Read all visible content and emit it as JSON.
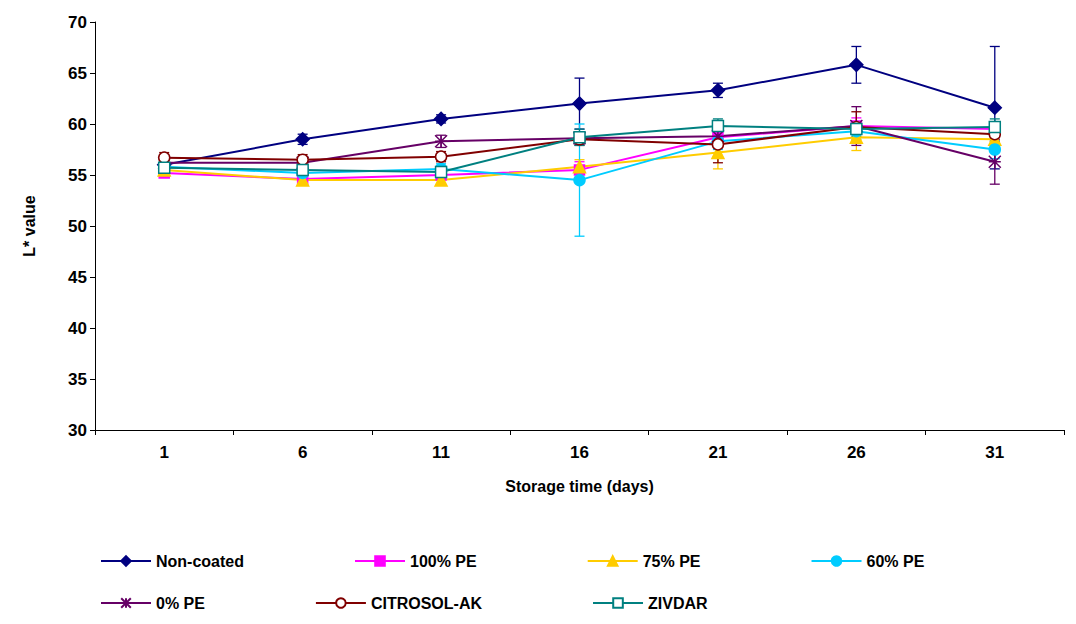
{
  "chart_data": {
    "type": "line",
    "x_label": "Storage time (days)",
    "y_label": "L* value",
    "categories": [
      1,
      6,
      11,
      16,
      21,
      26,
      31
    ],
    "ylim": [
      30,
      70
    ],
    "yticks": [
      30,
      35,
      40,
      45,
      50,
      55,
      60,
      65,
      70
    ],
    "grid": false,
    "legend": "bottom",
    "series": [
      {
        "name": "Non-coated",
        "color": "#000080",
        "marker": "diamond",
        "values": [
          56.0,
          58.5,
          60.5,
          62.0,
          63.3,
          65.8,
          61.6
        ],
        "errors": [
          0.5,
          0.5,
          0.4,
          2.5,
          0.7,
          1.8,
          6.0
        ]
      },
      {
        "name": "100% PE",
        "color": "#ff00ff",
        "marker": "square",
        "values": [
          55.2,
          54.6,
          55.0,
          55.5,
          58.7,
          59.8,
          59.5
        ],
        "errors": [
          0.4,
          0.6,
          0.4,
          0.8,
          0.6,
          0.8,
          0.7
        ]
      },
      {
        "name": "75% PE",
        "color": "#ffcc00",
        "marker": "triangle",
        "values": [
          55.5,
          54.5,
          54.5,
          55.8,
          57.2,
          58.7,
          58.5
        ],
        "errors": [
          0.4,
          0.5,
          0.4,
          0.7,
          1.6,
          1.3,
          0.8
        ]
      },
      {
        "name": "60% PE",
        "color": "#00ccff",
        "marker": "circle",
        "values": [
          55.8,
          55.2,
          55.6,
          54.5,
          58.3,
          59.3,
          57.5
        ],
        "errors": [
          0.4,
          0.5,
          0.5,
          5.5,
          0.8,
          0.8,
          0.9
        ]
      },
      {
        "name": "0% PE",
        "color": "#660066",
        "marker": "star",
        "values": [
          56.2,
          56.2,
          58.3,
          58.6,
          58.8,
          59.8,
          56.3
        ],
        "errors": [
          0.5,
          0.5,
          0.6,
          0.6,
          0.6,
          1.9,
          2.2
        ]
      },
      {
        "name": "CITROSOL-AK",
        "color": "#800000",
        "marker": "circle-open",
        "values": [
          56.7,
          56.5,
          56.8,
          58.5,
          58.0,
          59.7,
          59.0
        ],
        "errors": [
          0.5,
          0.5,
          0.5,
          0.6,
          1.8,
          1.5,
          0.7
        ]
      },
      {
        "name": "ZIVDAR",
        "color": "#008080",
        "marker": "square-open",
        "values": [
          55.7,
          55.5,
          55.3,
          58.7,
          59.8,
          59.5,
          59.7
        ],
        "errors": [
          0.4,
          0.5,
          0.4,
          0.8,
          0.7,
          0.7,
          0.8
        ]
      }
    ]
  }
}
